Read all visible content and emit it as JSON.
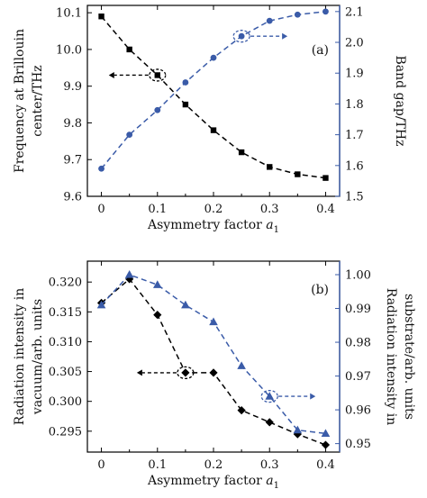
{
  "chart_data": [
    {
      "type": "line",
      "panel_label": "(a)",
      "xlabel_prefix": "Asymmetry factor ",
      "xlabel_var": "a",
      "xlabel_sub": "1",
      "ylabel_left": [
        "Frequency at Brillouin",
        "center/THz"
      ],
      "ylabel_right": "Band gap/THz",
      "x_ticks": [
        "0",
        "0.1",
        "0.2",
        "0.3",
        "0.4"
      ],
      "x_tick_values": [
        0,
        0.1,
        0.2,
        0.3,
        0.4
      ],
      "y_left_ticks": [
        "9.6",
        "9.7",
        "9.8",
        "9.9",
        "10.0",
        "10.1"
      ],
      "y_left_tick_values": [
        9.6,
        9.7,
        9.8,
        9.9,
        10.0,
        10.1
      ],
      "y_right_ticks": [
        "1.5",
        "1.6",
        "1.7",
        "1.8",
        "1.9",
        "2.0",
        "2.1"
      ],
      "y_right_tick_values": [
        1.5,
        1.6,
        1.7,
        1.8,
        1.9,
        2.0,
        2.1
      ],
      "xlim": [
        -0.025,
        0.425
      ],
      "ylim_left": [
        9.6,
        10.12
      ],
      "ylim_right": [
        1.5,
        2.12
      ],
      "series": [
        {
          "axis": "left",
          "marker": "square",
          "color": "#000000",
          "x": [
            0,
            0.05,
            0.1,
            0.15,
            0.2,
            0.25,
            0.3,
            0.35,
            0.4
          ],
          "y": [
            10.09,
            10.0,
            9.93,
            9.85,
            9.78,
            9.72,
            9.68,
            9.66,
            9.65
          ]
        },
        {
          "axis": "right",
          "marker": "circle",
          "color": "#3a5ba8",
          "x": [
            0,
            0.05,
            0.1,
            0.15,
            0.2,
            0.25,
            0.3,
            0.35,
            0.4
          ],
          "y": [
            1.59,
            1.7,
            1.78,
            1.87,
            1.95,
            2.02,
            2.07,
            2.09,
            2.1
          ]
        }
      ],
      "annotations": [
        {
          "series": 0,
          "point": 2,
          "direction": "left"
        },
        {
          "series": 1,
          "point": 5,
          "direction": "right"
        }
      ]
    },
    {
      "type": "line",
      "panel_label": "(b)",
      "xlabel_prefix": "Asymmetry factor ",
      "xlabel_var": "a",
      "xlabel_sub": "1",
      "ylabel_left": [
        "Radiation intensity in",
        "vacuum/arb. units"
      ],
      "ylabel_right": [
        "Radiation intensity in",
        "substrate/arb. units"
      ],
      "x_ticks": [
        "0",
        "0.1",
        "0.2",
        "0.3",
        "0.4"
      ],
      "x_tick_values": [
        0,
        0.1,
        0.2,
        0.3,
        0.4
      ],
      "y_left_ticks": [
        "0.295",
        "0.300",
        "0.305",
        "0.310",
        "0.315",
        "0.320"
      ],
      "y_left_tick_values": [
        0.295,
        0.3,
        0.305,
        0.31,
        0.315,
        0.32
      ],
      "y_right_ticks": [
        "0.95",
        "0.96",
        "0.97",
        "0.98",
        "0.99",
        "1.00"
      ],
      "y_right_tick_values": [
        0.95,
        0.96,
        0.97,
        0.98,
        0.99,
        1.0
      ],
      "xlim": [
        -0.025,
        0.425
      ],
      "ylim_left": [
        0.2915,
        0.3235
      ],
      "ylim_right": [
        0.9475,
        1.004
      ],
      "series": [
        {
          "axis": "left",
          "marker": "diamond",
          "color": "#000000",
          "x": [
            0,
            0.05,
            0.1,
            0.15,
            0.2,
            0.25,
            0.3,
            0.35,
            0.4
          ],
          "y": [
            0.3165,
            0.3205,
            0.3145,
            0.3048,
            0.3048,
            0.2985,
            0.2965,
            0.2945,
            0.2927
          ]
        },
        {
          "axis": "right",
          "marker": "triangle",
          "color": "#3a5ba8",
          "x": [
            0,
            0.05,
            0.1,
            0.15,
            0.2,
            0.25,
            0.3,
            0.35,
            0.4
          ],
          "y": [
            0.991,
            1.0,
            0.997,
            0.991,
            0.986,
            0.973,
            0.964,
            0.954,
            0.953
          ]
        }
      ],
      "annotations": [
        {
          "series": 0,
          "point": 3,
          "direction": "left"
        },
        {
          "series": 1,
          "point": 6,
          "direction": "right"
        }
      ]
    }
  ]
}
